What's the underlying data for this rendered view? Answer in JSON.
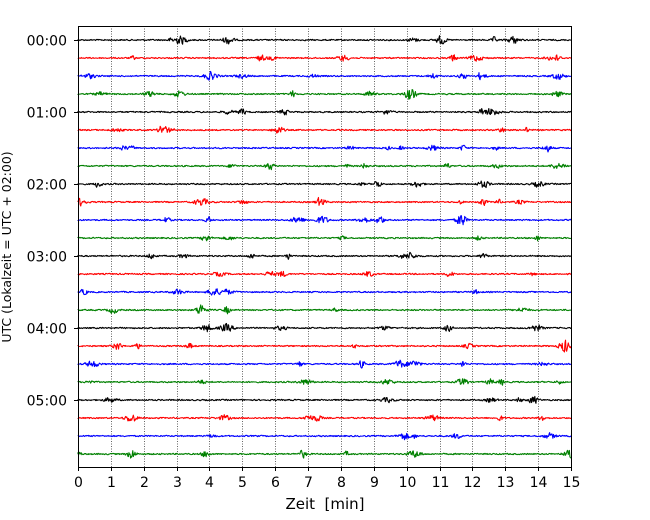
{
  "chart_data": {
    "type": "line",
    "title": "",
    "xlabel": "Zeit  [min]",
    "ylabel": "UTC (Lokalzeit = UTC + 02:00)",
    "xlim": [
      0,
      15
    ],
    "x_ticks": [
      0,
      1,
      2,
      3,
      4,
      5,
      6,
      7,
      8,
      9,
      10,
      11,
      12,
      13,
      14,
      15
    ],
    "y_ticks": [
      "00:00",
      "01:00",
      "02:00",
      "03:00",
      "04:00",
      "05:00"
    ],
    "trace_interval_min": 15,
    "trace_count": 24,
    "trace_colors": [
      "#000000",
      "#ff0000",
      "#0000ff",
      "#008000"
    ],
    "grid": "vertical dotted lines at every minute",
    "legend": "none"
  }
}
